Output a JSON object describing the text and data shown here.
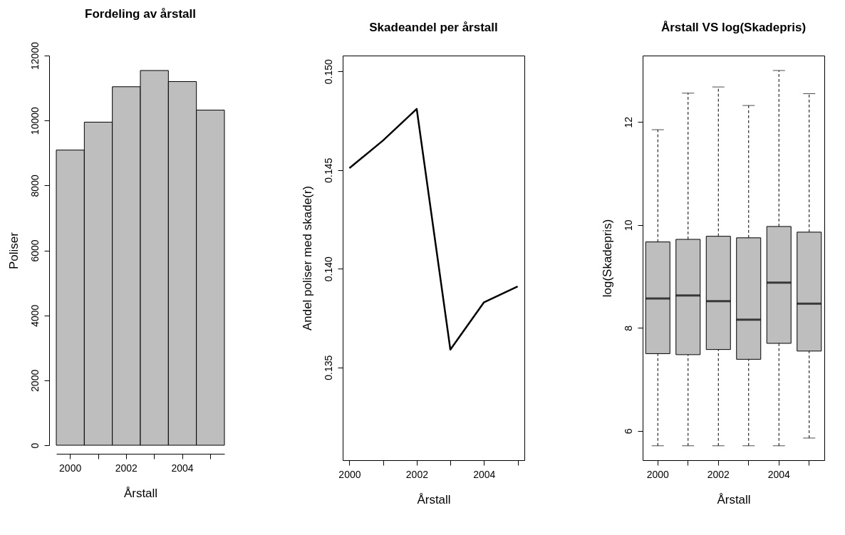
{
  "chart_data": [
    {
      "type": "bar",
      "title": "Fordeling av årstall",
      "xlabel": "Årstall",
      "ylabel": "Poliser",
      "categories": [
        "2000",
        null,
        "2002",
        null,
        "2004",
        null
      ],
      "values": [
        9090,
        9950,
        11040,
        11540,
        11200,
        10320
      ],
      "color": "#bebebe",
      "ylim": [
        0,
        12000
      ],
      "yticks": [
        0,
        2000,
        4000,
        6000,
        8000,
        10000,
        12000
      ]
    },
    {
      "type": "line",
      "title": "Skadeandel per årstall",
      "xlabel": "Årstall",
      "ylabel": "Andel poliser med skade(r)",
      "x": [
        2000,
        2001,
        2002,
        2003,
        2004,
        2005
      ],
      "values": [
        0.1451,
        0.1465,
        0.1481,
        0.1359,
        0.1383,
        0.1391
      ],
      "color": "#000000",
      "xlim": [
        1999.8,
        2005.2
      ],
      "xticks": [
        2000,
        {
          "value": 2001,
          "label": null
        },
        2002,
        {
          "value": 2003,
          "label": null
        },
        2004,
        {
          "value": 2005,
          "label": null
        }
      ],
      "ylim": [
        0.1303,
        0.1508
      ],
      "yticks": [
        {
          "value": 0.135,
          "label": "0.135"
        },
        {
          "value": 0.14,
          "label": "0.140"
        },
        {
          "value": 0.145,
          "label": "0.145"
        },
        {
          "value": 0.15,
          "label": "0.150"
        }
      ]
    },
    {
      "type": "box",
      "title": "Årstall VS log(Skadepris)",
      "xlabel": "Årstall",
      "ylabel": "log(Skadepris)",
      "categories": [
        "2000",
        null,
        "2002",
        null,
        "2004",
        null
      ],
      "color": "#bebebe",
      "ylim": [
        5.43,
        13.29
      ],
      "yticks": [
        6,
        8,
        10,
        12
      ],
      "boxes": [
        {
          "low": 5.71,
          "q1": 7.5,
          "median": 8.57,
          "q3": 9.67,
          "high": 11.85
        },
        {
          "low": 5.71,
          "q1": 7.48,
          "median": 8.63,
          "q3": 9.72,
          "high": 12.56
        },
        {
          "low": 5.71,
          "q1": 7.58,
          "median": 8.52,
          "q3": 9.78,
          "high": 12.68
        },
        {
          "low": 5.71,
          "q1": 7.39,
          "median": 8.16,
          "q3": 9.75,
          "high": 12.32
        },
        {
          "low": 5.71,
          "q1": 7.7,
          "median": 8.88,
          "q3": 9.97,
          "high": 13.0
        },
        {
          "low": 5.86,
          "q1": 7.55,
          "median": 8.47,
          "q3": 9.86,
          "high": 12.55
        }
      ]
    }
  ]
}
